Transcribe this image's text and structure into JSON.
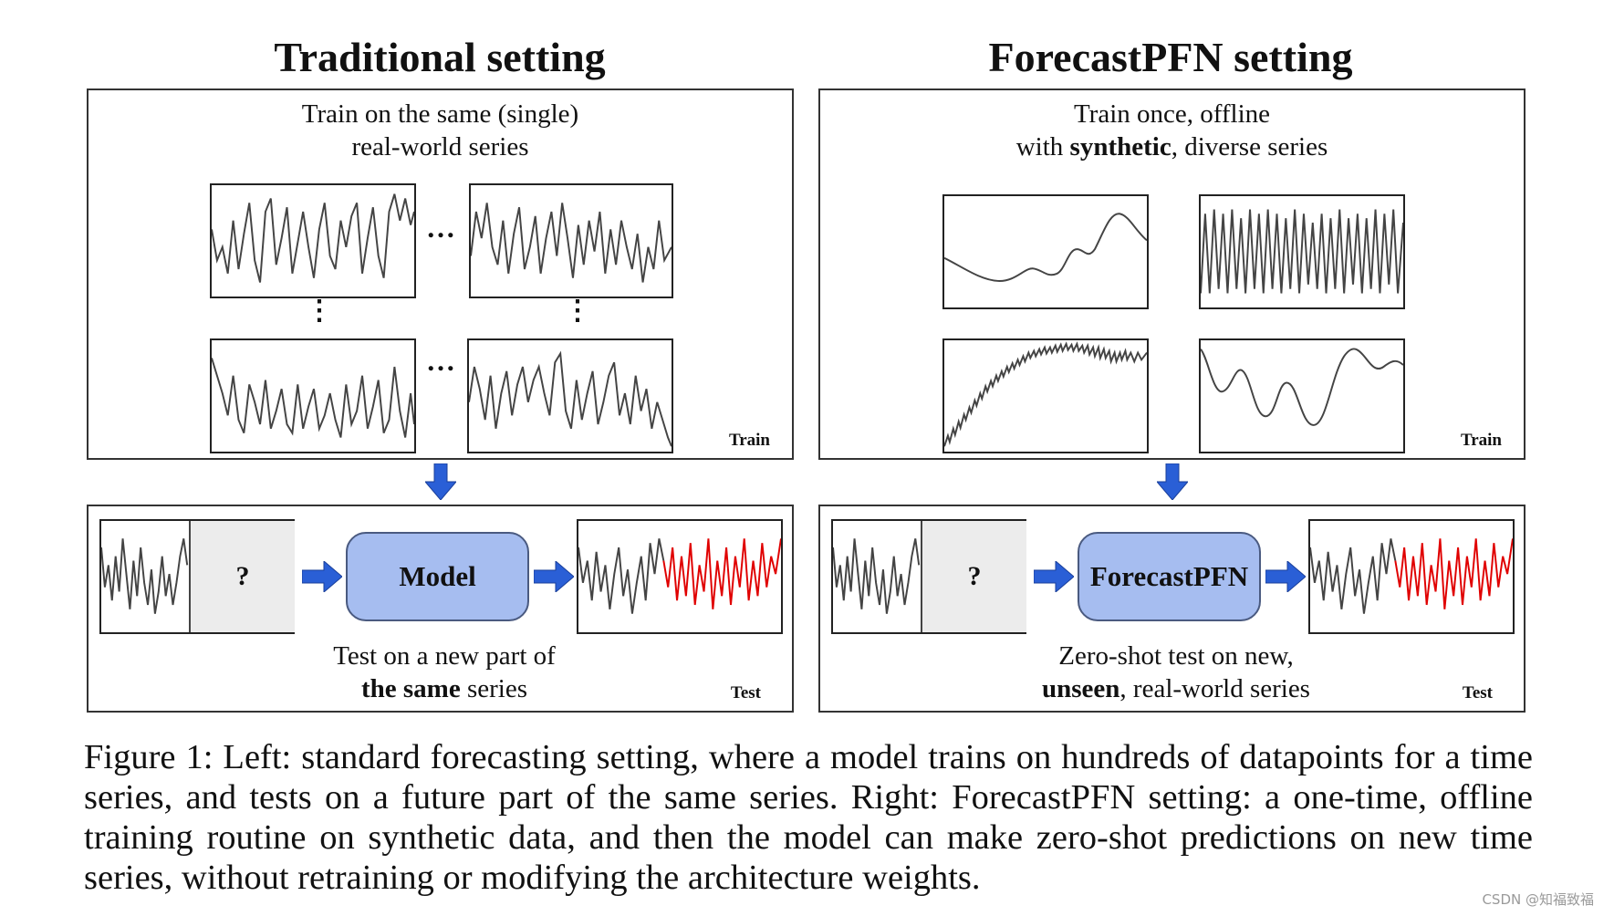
{
  "left": {
    "title": "Traditional setting",
    "train_line1": "Train on the same (single)",
    "train_line2": "real-world series",
    "train_tag": "Train",
    "hdots": "…",
    "vdots": "⋮",
    "question": "?",
    "model_label": "Model",
    "test_line1": "Test on a new part of",
    "test_line2_bold": "the same",
    "test_line2_rest": " series",
    "test_tag": "Test"
  },
  "right": {
    "title": "ForecastPFN setting",
    "train_line1": "Train once, offline",
    "train_line2_pre": "with ",
    "train_line2_bold": "synthetic",
    "train_line2_post": ", diverse series",
    "train_tag": "Train",
    "question": "?",
    "model_label": "ForecastPFN",
    "test_line1": "Zero-shot test on new,",
    "test_line2_bold": "unseen",
    "test_line2_rest": ", real-world series",
    "test_tag": "Test"
  },
  "caption": "Figure 1: Left: standard forecasting setting, where a model trains on hundreds of datapoints for a time series, and tests on a future part of the same series. Right: ForecastPFN setting: a one-time, offline training routine on synthetic data, and then the model can make zero-shot predictions on new time series, without retraining or modifying the architecture weights.",
  "watermark": "CSDN @知福致福",
  "colors": {
    "model_fill": "#a6bdf0",
    "arrow_blue": "#2a5fd6",
    "forecast_red": "#e00000",
    "series_gray": "#444444"
  }
}
